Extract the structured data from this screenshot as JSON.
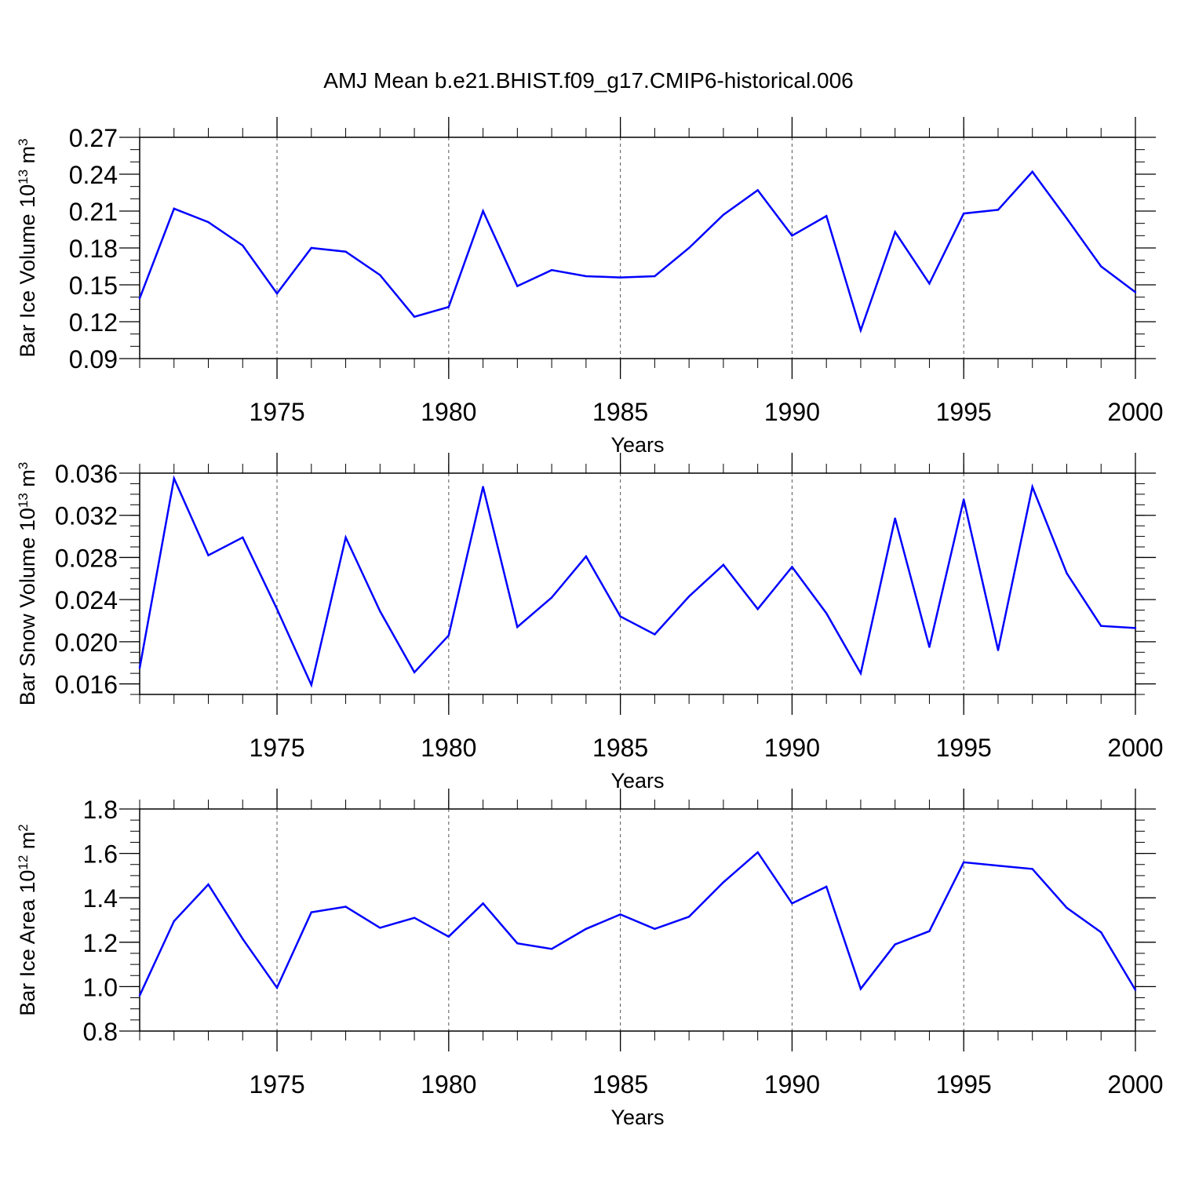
{
  "title": "AMJ Mean b.e21.BHIST.f09_g17.CMIP6-historical.006",
  "line_color": "#0000ff",
  "chart_data": [
    {
      "type": "line",
      "name": "ice-volume",
      "ylabel": "Bar Ice Volume 10",
      "ylabel_exp": "13",
      "ylabel_unit": " m",
      "ylabel_unit_exp": "3",
      "xlabel": "Years",
      "xlim": [
        1971,
        2000
      ],
      "ylim": [
        0.09,
        0.27
      ],
      "x_ticks": [
        1975,
        1980,
        1985,
        1990,
        1995,
        2000
      ],
      "x_tick_labels": [
        "1975",
        "1980",
        "1985",
        "1990",
        "1995",
        "2000"
      ],
      "y_ticks": [
        0.09,
        0.12,
        0.15,
        0.18,
        0.21,
        0.24,
        0.27
      ],
      "y_tick_labels": [
        "0.09",
        "0.12",
        "0.15",
        "0.18",
        "0.21",
        "0.24",
        "0.27"
      ],
      "y_minor": 0.01,
      "x": [
        1971,
        1972,
        1973,
        1974,
        1975,
        1976,
        1977,
        1978,
        1979,
        1980,
        1981,
        1982,
        1983,
        1984,
        1985,
        1986,
        1987,
        1988,
        1989,
        1990,
        1991,
        1992,
        1993,
        1994,
        1995,
        1996,
        1997,
        1998,
        1999,
        2000
      ],
      "values": [
        0.139,
        0.212,
        0.201,
        0.182,
        0.143,
        0.18,
        0.177,
        0.158,
        0.124,
        0.132,
        0.21,
        0.149,
        0.162,
        0.157,
        0.156,
        0.157,
        0.18,
        0.207,
        0.227,
        0.19,
        0.206,
        0.113,
        0.193,
        0.151,
        0.208,
        0.211,
        0.242,
        0.204,
        0.165,
        0.144
      ]
    },
    {
      "type": "line",
      "name": "snow-volume",
      "ylabel": "Bar Snow Volume 10",
      "ylabel_exp": "13",
      "ylabel_unit": " m",
      "ylabel_unit_exp": "3",
      "xlabel": "Years",
      "xlim": [
        1971,
        2000
      ],
      "ylim": [
        0.015,
        0.036
      ],
      "x_ticks": [
        1975,
        1980,
        1985,
        1990,
        1995,
        2000
      ],
      "x_tick_labels": [
        "1975",
        "1980",
        "1985",
        "1990",
        "1995",
        "2000"
      ],
      "y_ticks": [
        0.016,
        0.02,
        0.024,
        0.028,
        0.032,
        0.036
      ],
      "y_tick_labels": [
        "0.016",
        "0.020",
        "0.024",
        "0.028",
        "0.032",
        "0.036"
      ],
      "y_minor": 0.001,
      "x": [
        1971,
        1972,
        1973,
        1974,
        1975,
        1976,
        1977,
        1978,
        1979,
        1980,
        1981,
        1982,
        1983,
        1984,
        1985,
        1986,
        1987,
        1988,
        1989,
        1990,
        1991,
        1992,
        1993,
        1994,
        1995,
        1996,
        1997,
        1998,
        1999,
        2000
      ],
      "values": [
        0.0175,
        0.0355,
        0.0282,
        0.0299,
        0.0231,
        0.0159,
        0.0299,
        0.0229,
        0.0171,
        0.0206,
        0.0347,
        0.0214,
        0.0242,
        0.0281,
        0.0224,
        0.0207,
        0.0243,
        0.0273,
        0.0231,
        0.0271,
        0.0227,
        0.017,
        0.0317,
        0.0195,
        0.0335,
        0.0192,
        0.0347,
        0.0265,
        0.0215,
        0.0213
      ]
    },
    {
      "type": "line",
      "name": "ice-area",
      "ylabel": "Bar Ice Area 10",
      "ylabel_exp": "12",
      "ylabel_unit": " m",
      "ylabel_unit_exp": "2",
      "xlabel": "Years",
      "xlim": [
        1971,
        2000
      ],
      "ylim": [
        0.8,
        1.8
      ],
      "x_ticks": [
        1975,
        1980,
        1985,
        1990,
        1995,
        2000
      ],
      "x_tick_labels": [
        "1975",
        "1980",
        "1985",
        "1990",
        "1995",
        "2000"
      ],
      "y_ticks": [
        0.8,
        1.0,
        1.2,
        1.4,
        1.6,
        1.8
      ],
      "y_tick_labels": [
        "0.8",
        "1.0",
        "1.2",
        "1.4",
        "1.6",
        "1.8"
      ],
      "y_minor": 0.05,
      "x": [
        1971,
        1972,
        1973,
        1974,
        1975,
        1976,
        1977,
        1978,
        1979,
        1980,
        1981,
        1982,
        1983,
        1984,
        1985,
        1986,
        1987,
        1988,
        1989,
        1990,
        1991,
        1992,
        1993,
        1994,
        1995,
        1996,
        1997,
        1998,
        1999,
        2000
      ],
      "values": [
        0.96,
        1.295,
        1.46,
        1.215,
        0.995,
        1.335,
        1.36,
        1.265,
        1.31,
        1.225,
        1.375,
        1.195,
        1.17,
        1.26,
        1.325,
        1.26,
        1.315,
        1.47,
        1.605,
        1.375,
        1.45,
        0.99,
        1.19,
        1.25,
        1.56,
        1.545,
        1.53,
        1.355,
        1.245,
        0.985
      ]
    }
  ]
}
